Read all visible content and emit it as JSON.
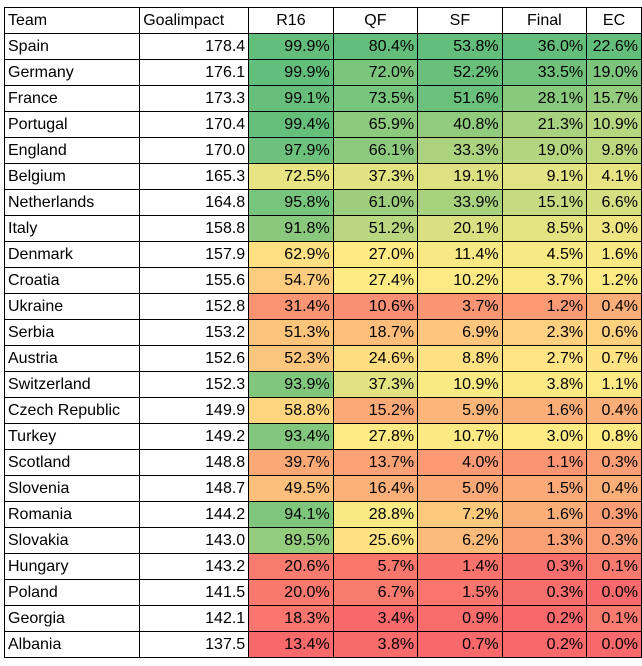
{
  "headers": [
    "Team",
    "Goalimpact",
    "R16",
    "QF",
    "SF",
    "Final",
    "EC"
  ],
  "rows": [
    [
      "Spain",
      "178.4",
      "99.9%",
      "80.4%",
      "53.8%",
      "36.0%",
      "22.6%"
    ],
    [
      "Germany",
      "176.1",
      "99.9%",
      "72.0%",
      "52.2%",
      "33.5%",
      "19.0%"
    ],
    [
      "France",
      "173.3",
      "99.1%",
      "73.5%",
      "51.6%",
      "28.1%",
      "15.7%"
    ],
    [
      "Portugal",
      "170.4",
      "99.4%",
      "65.9%",
      "40.8%",
      "21.3%",
      "10.9%"
    ],
    [
      "England",
      "170.0",
      "97.9%",
      "66.1%",
      "33.3%",
      "19.0%",
      "9.8%"
    ],
    [
      "Belgium",
      "165.3",
      "72.5%",
      "37.3%",
      "19.1%",
      "9.1%",
      "4.1%"
    ],
    [
      "Netherlands",
      "164.8",
      "95.8%",
      "61.0%",
      "33.9%",
      "15.1%",
      "6.6%"
    ],
    [
      "Italy",
      "158.8",
      "91.8%",
      "51.2%",
      "20.1%",
      "8.5%",
      "3.0%"
    ],
    [
      "Denmark",
      "157.9",
      "62.9%",
      "27.0%",
      "11.4%",
      "4.5%",
      "1.6%"
    ],
    [
      "Croatia",
      "155.6",
      "54.7%",
      "27.4%",
      "10.2%",
      "3.7%",
      "1.2%"
    ],
    [
      "Ukraine",
      "152.8",
      "31.4%",
      "10.6%",
      "3.7%",
      "1.2%",
      "0.4%"
    ],
    [
      "Serbia",
      "153.2",
      "51.3%",
      "18.7%",
      "6.9%",
      "2.3%",
      "0.6%"
    ],
    [
      "Austria",
      "152.6",
      "52.3%",
      "24.6%",
      "8.8%",
      "2.7%",
      "0.7%"
    ],
    [
      "Switzerland",
      "152.3",
      "93.9%",
      "37.3%",
      "10.9%",
      "3.8%",
      "1.1%"
    ],
    [
      "Czech Republic",
      "149.9",
      "58.8%",
      "15.2%",
      "5.9%",
      "1.6%",
      "0.4%"
    ],
    [
      "Turkey",
      "149.2",
      "93.4%",
      "27.8%",
      "10.7%",
      "3.0%",
      "0.8%"
    ],
    [
      "Scotland",
      "148.8",
      "39.7%",
      "13.7%",
      "4.0%",
      "1.1%",
      "0.3%"
    ],
    [
      "Slovenia",
      "148.7",
      "49.5%",
      "16.4%",
      "5.0%",
      "1.5%",
      "0.4%"
    ],
    [
      "Romania",
      "144.2",
      "94.1%",
      "28.8%",
      "7.2%",
      "1.6%",
      "0.3%"
    ],
    [
      "Slovakia",
      "143.0",
      "89.5%",
      "25.6%",
      "6.2%",
      "1.3%",
      "0.3%"
    ],
    [
      "Hungary",
      "143.2",
      "20.6%",
      "5.7%",
      "1.4%",
      "0.3%",
      "0.1%"
    ],
    [
      "Poland",
      "141.5",
      "20.0%",
      "6.7%",
      "1.5%",
      "0.3%",
      "0.0%"
    ],
    [
      "Georgia",
      "142.1",
      "18.3%",
      "3.4%",
      "0.9%",
      "0.2%",
      "0.1%"
    ],
    [
      "Albania",
      "137.5",
      "13.4%",
      "3.8%",
      "0.7%",
      "0.2%",
      "0.0%"
    ]
  ],
  "color_scale": {
    "low": "#f8696b",
    "mid": "#ffeb84",
    "high": "#63be7b"
  }
}
